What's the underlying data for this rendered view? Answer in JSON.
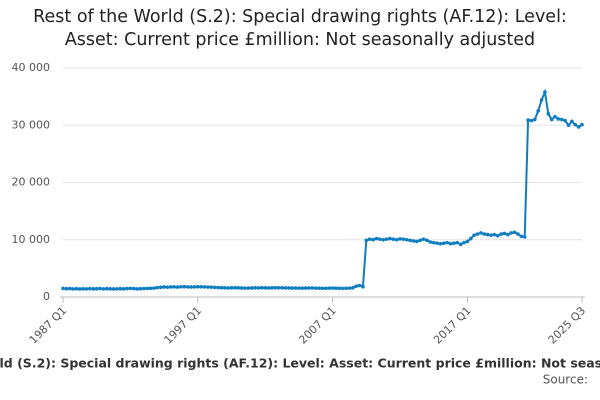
{
  "chart_data": {
    "type": "line",
    "title": "Rest of the World (S.2): Special drawing rights (AF.12): Level: Asset: Current price £million: Not seasonally adjusted",
    "source": "Source:",
    "categories": [
      "1987 Q1",
      null,
      null,
      null,
      null,
      null,
      null,
      null,
      null,
      null,
      null,
      null,
      null,
      null,
      null,
      null,
      null,
      null,
      null,
      null,
      null,
      null,
      null,
      null,
      null,
      null,
      null,
      null,
      null,
      null,
      null,
      null,
      null,
      null,
      null,
      null,
      null,
      null,
      null,
      null,
      "1997 Q1",
      null,
      null,
      null,
      null,
      null,
      null,
      null,
      null,
      null,
      null,
      null,
      null,
      null,
      null,
      null,
      null,
      null,
      null,
      null,
      null,
      null,
      null,
      null,
      null,
      null,
      null,
      null,
      null,
      null,
      null,
      null,
      null,
      null,
      null,
      null,
      null,
      null,
      null,
      null,
      "2007 Q1",
      null,
      null,
      null,
      null,
      null,
      null,
      null,
      null,
      null,
      null,
      null,
      null,
      null,
      null,
      null,
      null,
      null,
      null,
      null,
      null,
      null,
      null,
      null,
      null,
      null,
      null,
      null,
      null,
      null,
      null,
      null,
      null,
      null,
      null,
      null,
      null,
      null,
      null,
      null,
      "2017 Q1",
      null,
      null,
      null,
      null,
      null,
      null,
      null,
      null,
      null,
      null,
      null,
      null,
      null,
      null,
      null,
      null,
      null,
      null,
      null,
      null,
      null,
      null,
      null,
      null,
      null,
      null,
      null,
      null,
      null,
      null,
      null,
      null,
      null,
      "2025 Q3"
    ],
    "series": [
      {
        "color": "#0f7dc2",
        "values": [
          1500,
          1450,
          1480,
          1420,
          1450,
          1400,
          1430,
          1420,
          1460,
          1430,
          1450,
          1480,
          1420,
          1450,
          1430,
          1400,
          1420,
          1450,
          1430,
          1480,
          1500,
          1470,
          1420,
          1450,
          1480,
          1500,
          1520,
          1550,
          1650,
          1700,
          1750,
          1720,
          1750,
          1760,
          1730,
          1780,
          1800,
          1760,
          1750,
          1770,
          1800,
          1780,
          1760,
          1740,
          1720,
          1680,
          1650,
          1620,
          1600,
          1580,
          1600,
          1620,
          1600,
          1580,
          1550,
          1560,
          1580,
          1600,
          1590,
          1620,
          1600,
          1580,
          1600,
          1620,
          1610,
          1600,
          1590,
          1580,
          1560,
          1570,
          1550,
          1540,
          1560,
          1580,
          1570,
          1550,
          1540,
          1520,
          1530,
          1550,
          1560,
          1540,
          1520,
          1500,
          1530,
          1550,
          1600,
          1900,
          2000,
          1800,
          9900,
          10100,
          10000,
          10200,
          10100,
          10000,
          10100,
          10200,
          10100,
          10000,
          10150,
          10100,
          10000,
          9900,
          9800,
          9700,
          9900,
          10100,
          9900,
          9600,
          9500,
          9400,
          9300,
          9400,
          9500,
          9300,
          9400,
          9500,
          9200,
          9500,
          9700,
          10200,
          10800,
          11000,
          11200,
          11000,
          10900,
          10800,
          10900,
          10700,
          11000,
          11100,
          10900,
          11200,
          11300,
          11000,
          10600,
          10500,
          30900,
          30800,
          31000,
          32500,
          34400,
          35800,
          32000,
          31000,
          31500,
          31100,
          31000,
          30800,
          30000,
          30700,
          30100,
          29700,
          30100
        ]
      }
    ],
    "ylim": [
      0,
      40000
    ],
    "yticks": [
      0,
      {
        "value": 10000,
        "label": "10 000"
      },
      {
        "value": 20000,
        "label": "20 000"
      },
      {
        "value": 30000,
        "label": "30 000"
      },
      {
        "value": 40000,
        "label": "40 000"
      }
    ],
    "grid": true
  }
}
